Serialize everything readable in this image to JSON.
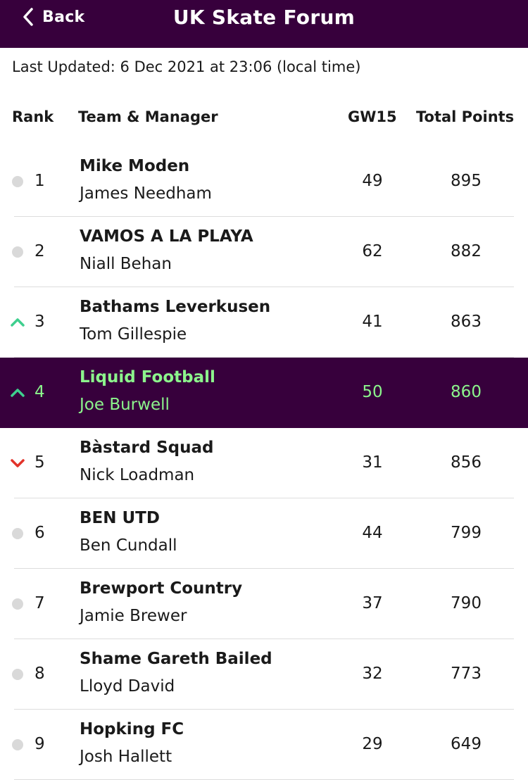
{
  "header": {
    "back_label": "Back",
    "title": "UK Skate Forum"
  },
  "last_updated": "Last Updated: 6 Dec 2021 at 23:06 (local time)",
  "columns": {
    "rank": "Rank",
    "team": "Team & Manager",
    "gw": "GW15",
    "total": "Total Points"
  },
  "colors": {
    "header_bg": "#37003c",
    "highlight_text": "#8cf58c",
    "up": "#3ecf8e",
    "down": "#e2332a",
    "same": "#d9d9d9"
  },
  "rows": [
    {
      "rank": "1",
      "movement": "same",
      "team": "Mike Moden",
      "manager": "James Needham",
      "gw": "49",
      "total": "895",
      "highlight": false
    },
    {
      "rank": "2",
      "movement": "same",
      "team": "VAMOS A LA PLAYA",
      "manager": "Niall Behan",
      "gw": "62",
      "total": "882",
      "highlight": false
    },
    {
      "rank": "3",
      "movement": "up",
      "team": "Bathams Leverkusen",
      "manager": "Tom Gillespie",
      "gw": "41",
      "total": "863",
      "highlight": false
    },
    {
      "rank": "4",
      "movement": "up",
      "team": "Liquid Football",
      "manager": "Joe Burwell",
      "gw": "50",
      "total": "860",
      "highlight": true
    },
    {
      "rank": "5",
      "movement": "down",
      "team": "Bàstard Squad",
      "manager": "Nick Loadman",
      "gw": "31",
      "total": "856",
      "highlight": false
    },
    {
      "rank": "6",
      "movement": "same",
      "team": "BEN UTD",
      "manager": "Ben Cundall",
      "gw": "44",
      "total": "799",
      "highlight": false
    },
    {
      "rank": "7",
      "movement": "same",
      "team": "Brewport Country",
      "manager": "Jamie Brewer",
      "gw": "37",
      "total": "790",
      "highlight": false
    },
    {
      "rank": "8",
      "movement": "same",
      "team": "Shame Gareth Bailed",
      "manager": "Lloyd David",
      "gw": "32",
      "total": "773",
      "highlight": false
    },
    {
      "rank": "9",
      "movement": "same",
      "team": "Hopking FC",
      "manager": "Josh Hallett",
      "gw": "29",
      "total": "649",
      "highlight": false
    }
  ]
}
